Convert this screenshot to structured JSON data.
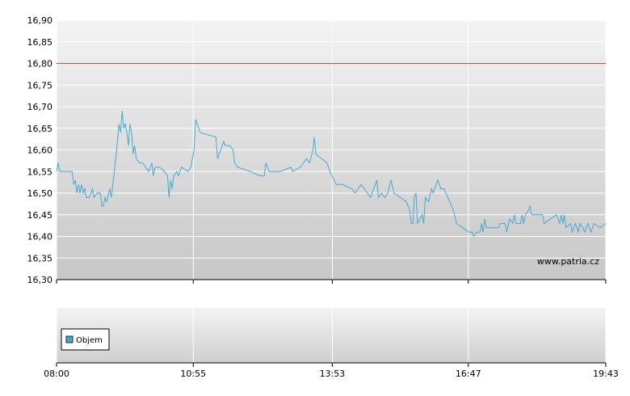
{
  "chart_data": {
    "type": "line",
    "y_ticks": [
      "16,90",
      "16,85",
      "16,80",
      "16,75",
      "16,70",
      "16,65",
      "16,60",
      "16,55",
      "16,50",
      "16,45",
      "16,40",
      "16,35",
      "16,30"
    ],
    "ylim": [
      16.3,
      16.9
    ],
    "x_ticks": [
      "08:00",
      "10:55",
      "13:53",
      "16:47",
      "19:43"
    ],
    "xlim": [
      "08:00",
      "19:43"
    ],
    "reference_line": {
      "value": 16.8,
      "color": "#e0443a"
    },
    "series": [
      {
        "color": "#4aa8d0",
        "points": [
          [
            "08:00",
            16.55
          ],
          [
            "08:02",
            16.57
          ],
          [
            "08:04",
            16.55
          ],
          [
            "08:20",
            16.55
          ],
          [
            "08:22",
            16.52
          ],
          [
            "08:24",
            16.53
          ],
          [
            "08:26",
            16.5
          ],
          [
            "08:28",
            16.52
          ],
          [
            "08:30",
            16.5
          ],
          [
            "08:32",
            16.52
          ],
          [
            "08:34",
            16.5
          ],
          [
            "08:36",
            16.51
          ],
          [
            "08:38",
            16.49
          ],
          [
            "08:42",
            16.49
          ],
          [
            "08:46",
            16.51
          ],
          [
            "08:48",
            16.49
          ],
          [
            "08:52",
            16.5
          ],
          [
            "08:56",
            16.5
          ],
          [
            "08:58",
            16.47
          ],
          [
            "09:00",
            16.47
          ],
          [
            "09:02",
            16.49
          ],
          [
            "09:04",
            16.48
          ],
          [
            "09:08",
            16.51
          ],
          [
            "09:10",
            16.49
          ],
          [
            "09:14",
            16.55
          ],
          [
            "09:18",
            16.62
          ],
          [
            "09:20",
            16.66
          ],
          [
            "09:22",
            16.64
          ],
          [
            "09:24",
            16.69
          ],
          [
            "09:26",
            16.65
          ],
          [
            "09:28",
            16.66
          ],
          [
            "09:30",
            16.64
          ],
          [
            "09:32",
            16.61
          ],
          [
            "09:34",
            16.66
          ],
          [
            "09:36",
            16.64
          ],
          [
            "09:38",
            16.59
          ],
          [
            "09:40",
            16.61
          ],
          [
            "09:42",
            16.58
          ],
          [
            "09:46",
            16.57
          ],
          [
            "09:50",
            16.57
          ],
          [
            "09:54",
            16.56
          ],
          [
            "09:58",
            16.55
          ],
          [
            "10:02",
            16.57
          ],
          [
            "10:04",
            16.54
          ],
          [
            "10:06",
            16.56
          ],
          [
            "10:12",
            16.56
          ],
          [
            "10:18",
            16.55
          ],
          [
            "10:22",
            16.54
          ],
          [
            "10:24",
            16.49
          ],
          [
            "10:26",
            16.53
          ],
          [
            "10:28",
            16.51
          ],
          [
            "10:30",
            16.54
          ],
          [
            "10:34",
            16.55
          ],
          [
            "10:36",
            16.54
          ],
          [
            "10:40",
            16.56
          ],
          [
            "10:48",
            16.55
          ],
          [
            "10:52",
            16.56
          ],
          [
            "10:56",
            16.6
          ],
          [
            "10:58",
            16.67
          ],
          [
            "11:04",
            16.64
          ],
          [
            "11:24",
            16.63
          ],
          [
            "11:26",
            16.58
          ],
          [
            "11:28",
            16.59
          ],
          [
            "11:34",
            16.62
          ],
          [
            "11:36",
            16.61
          ],
          [
            "11:42",
            16.61
          ],
          [
            "11:46",
            16.6
          ],
          [
            "11:48",
            16.57
          ],
          [
            "11:52",
            16.56
          ],
          [
            "12:08",
            16.55
          ],
          [
            "12:20",
            16.54
          ],
          [
            "12:26",
            16.54
          ],
          [
            "12:28",
            16.57
          ],
          [
            "12:32",
            16.55
          ],
          [
            "12:46",
            16.55
          ],
          [
            "13:00",
            16.56
          ],
          [
            "13:02",
            16.55
          ],
          [
            "13:12",
            16.56
          ],
          [
            "13:20",
            16.58
          ],
          [
            "13:24",
            16.57
          ],
          [
            "13:28",
            16.6
          ],
          [
            "13:30",
            16.63
          ],
          [
            "13:32",
            16.59
          ],
          [
            "13:46",
            16.57
          ],
          [
            "13:50",
            16.55
          ],
          [
            "13:58",
            16.52
          ],
          [
            "14:06",
            16.52
          ],
          [
            "14:18",
            16.51
          ],
          [
            "14:22",
            16.5
          ],
          [
            "14:30",
            16.52
          ],
          [
            "14:38",
            16.5
          ],
          [
            "14:42",
            16.49
          ],
          [
            "14:50",
            16.53
          ],
          [
            "14:52",
            16.49
          ],
          [
            "14:56",
            16.5
          ],
          [
            "15:00",
            16.49
          ],
          [
            "15:04",
            16.5
          ],
          [
            "15:08",
            16.53
          ],
          [
            "15:12",
            16.5
          ],
          [
            "15:28",
            16.48
          ],
          [
            "15:32",
            16.46
          ],
          [
            "15:34",
            16.43
          ],
          [
            "15:36",
            16.43
          ],
          [
            "15:38",
            16.49
          ],
          [
            "15:40",
            16.5
          ],
          [
            "15:42",
            16.43
          ],
          [
            "15:48",
            16.45
          ],
          [
            "15:50",
            16.43
          ],
          [
            "15:52",
            16.49
          ],
          [
            "15:56",
            16.48
          ],
          [
            "16:00",
            16.51
          ],
          [
            "16:02",
            16.5
          ],
          [
            "16:06",
            16.52
          ],
          [
            "16:08",
            16.53
          ],
          [
            "16:12",
            16.51
          ],
          [
            "16:16",
            16.51
          ],
          [
            "16:28",
            16.46
          ],
          [
            "16:32",
            16.43
          ],
          [
            "16:40",
            16.42
          ],
          [
            "16:48",
            16.41
          ],
          [
            "16:52",
            16.41
          ],
          [
            "16:54",
            16.4
          ],
          [
            "16:58",
            16.41
          ],
          [
            "17:02",
            16.41
          ],
          [
            "17:04",
            16.43
          ],
          [
            "17:06",
            16.41
          ],
          [
            "17:08",
            16.44
          ],
          [
            "17:10",
            16.42
          ],
          [
            "17:26",
            16.42
          ],
          [
            "17:28",
            16.43
          ],
          [
            "17:34",
            16.43
          ],
          [
            "17:36",
            16.41
          ],
          [
            "17:40",
            16.44
          ],
          [
            "17:44",
            16.43
          ],
          [
            "17:46",
            16.45
          ],
          [
            "17:48",
            16.43
          ],
          [
            "17:54",
            16.43
          ],
          [
            "17:56",
            16.45
          ],
          [
            "17:58",
            16.43
          ],
          [
            "18:00",
            16.45
          ],
          [
            "18:04",
            16.46
          ],
          [
            "18:06",
            16.47
          ],
          [
            "18:08",
            16.45
          ],
          [
            "18:22",
            16.45
          ],
          [
            "18:24",
            16.43
          ],
          [
            "18:40",
            16.45
          ],
          [
            "18:44",
            16.43
          ],
          [
            "18:46",
            16.45
          ],
          [
            "18:48",
            16.43
          ],
          [
            "18:50",
            16.45
          ],
          [
            "18:52",
            16.42
          ],
          [
            "18:58",
            16.43
          ],
          [
            "19:00",
            16.41
          ],
          [
            "19:04",
            16.43
          ],
          [
            "19:08",
            16.41
          ],
          [
            "19:10",
            16.43
          ],
          [
            "19:14",
            16.42
          ],
          [
            "19:16",
            16.41
          ],
          [
            "19:20",
            16.43
          ],
          [
            "19:24",
            16.41
          ],
          [
            "19:28",
            16.43
          ],
          [
            "19:36",
            16.42
          ],
          [
            "19:43",
            16.43
          ]
        ]
      }
    ],
    "volume_panel": {
      "legend_label": "Objem",
      "legend_color": "#4aa8d0"
    },
    "watermark": "www.patria.cz",
    "grid": true
  }
}
